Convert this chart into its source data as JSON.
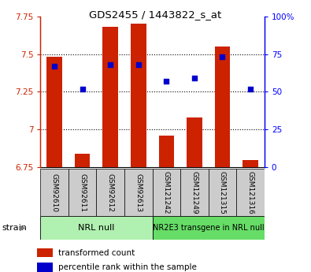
{
  "title": "GDS2455 / 1443822_s_at",
  "samples": [
    "GSM92610",
    "GSM92611",
    "GSM92612",
    "GSM92613",
    "GSM121242",
    "GSM121249",
    "GSM121315",
    "GSM121316"
  ],
  "group_labels": [
    "NRL null",
    "NR2E3 transgene in NRL null"
  ],
  "group_colors": [
    "#b0f0b0",
    "#66dd66"
  ],
  "transformed_count": [
    7.48,
    6.84,
    7.68,
    7.7,
    6.96,
    7.08,
    7.55,
    6.8
  ],
  "percentile_rank": [
    67,
    52,
    68,
    68,
    57,
    59,
    73,
    52
  ],
  "ylim_left": [
    6.75,
    7.75
  ],
  "ylim_right": [
    0,
    100
  ],
  "yticks_left": [
    6.75,
    7.0,
    7.25,
    7.5,
    7.75
  ],
  "ytick_labels_left": [
    "6.75",
    "7",
    "7.25",
    "7.5",
    "7.75"
  ],
  "yticks_right": [
    0,
    25,
    50,
    75,
    100
  ],
  "ytick_labels_right": [
    "0",
    "25",
    "50",
    "75",
    "100%"
  ],
  "bar_color": "#cc2200",
  "dot_color": "#0000cc",
  "bar_bottom": 6.75,
  "legend_items": [
    "transformed count",
    "percentile rank within the sample"
  ],
  "legend_colors": [
    "#cc2200",
    "#0000cc"
  ],
  "strain_label": "strain",
  "sample_box_color": "#cccccc"
}
